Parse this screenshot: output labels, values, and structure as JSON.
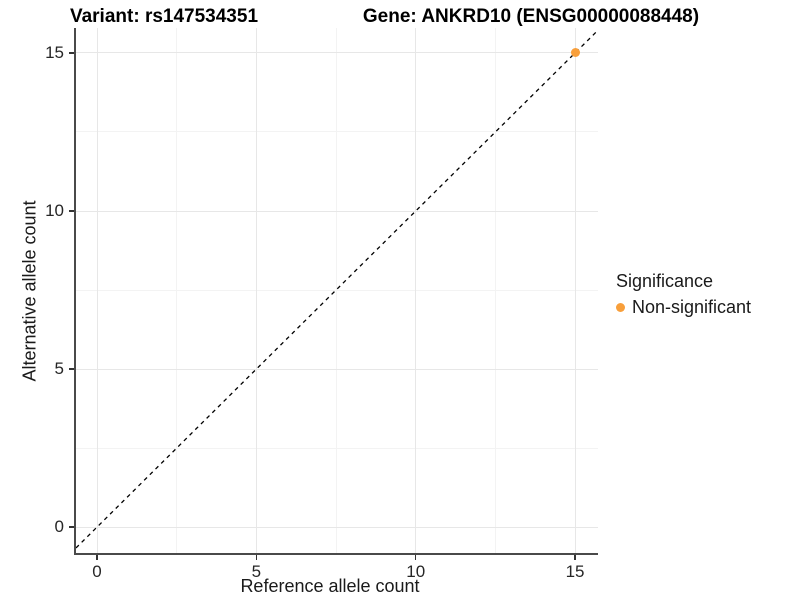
{
  "titles": {
    "variant": "Variant: rs147534351",
    "gene": "Gene: ANKRD10 (ENSG00000088448)"
  },
  "axes": {
    "x_label": "Reference allele count",
    "y_label": "Alternative allele count"
  },
  "legend": {
    "title": "Significance",
    "items": [
      {
        "label": "Non-significant",
        "color": "#F89F3B"
      }
    ]
  },
  "colors": {
    "background": "#ffffff",
    "axis_line": "#4a4a4a",
    "grid_major": "#e7e7e7",
    "grid_minor": "#f3f3f3",
    "reference_line": "#000000",
    "point": "#F89F3B"
  },
  "chart_data": {
    "type": "scatter",
    "title": "Variant: rs147534351 | Gene: ANKRD10 (ENSG00000088448)",
    "xlabel": "Reference allele count",
    "ylabel": "Alternative allele count",
    "xlim": [
      -0.66,
      15.72
    ],
    "ylim": [
      -0.82,
      15.79
    ],
    "x_ticks": [
      0,
      5,
      10,
      15
    ],
    "y_ticks": [
      0,
      5,
      10,
      15
    ],
    "x_minor_ticks": [
      2.5,
      7.5,
      12.5
    ],
    "y_minor_ticks": [
      2.5,
      7.5,
      12.5
    ],
    "grid": true,
    "legend_position": "right",
    "series": [
      {
        "name": "Non-significant",
        "color": "#F89F3B",
        "points": [
          {
            "x": 15,
            "y": 15
          }
        ]
      }
    ],
    "reference_line": {
      "kind": "abline",
      "slope": 1,
      "intercept": 0,
      "style": "dashed",
      "color": "#000000"
    }
  }
}
